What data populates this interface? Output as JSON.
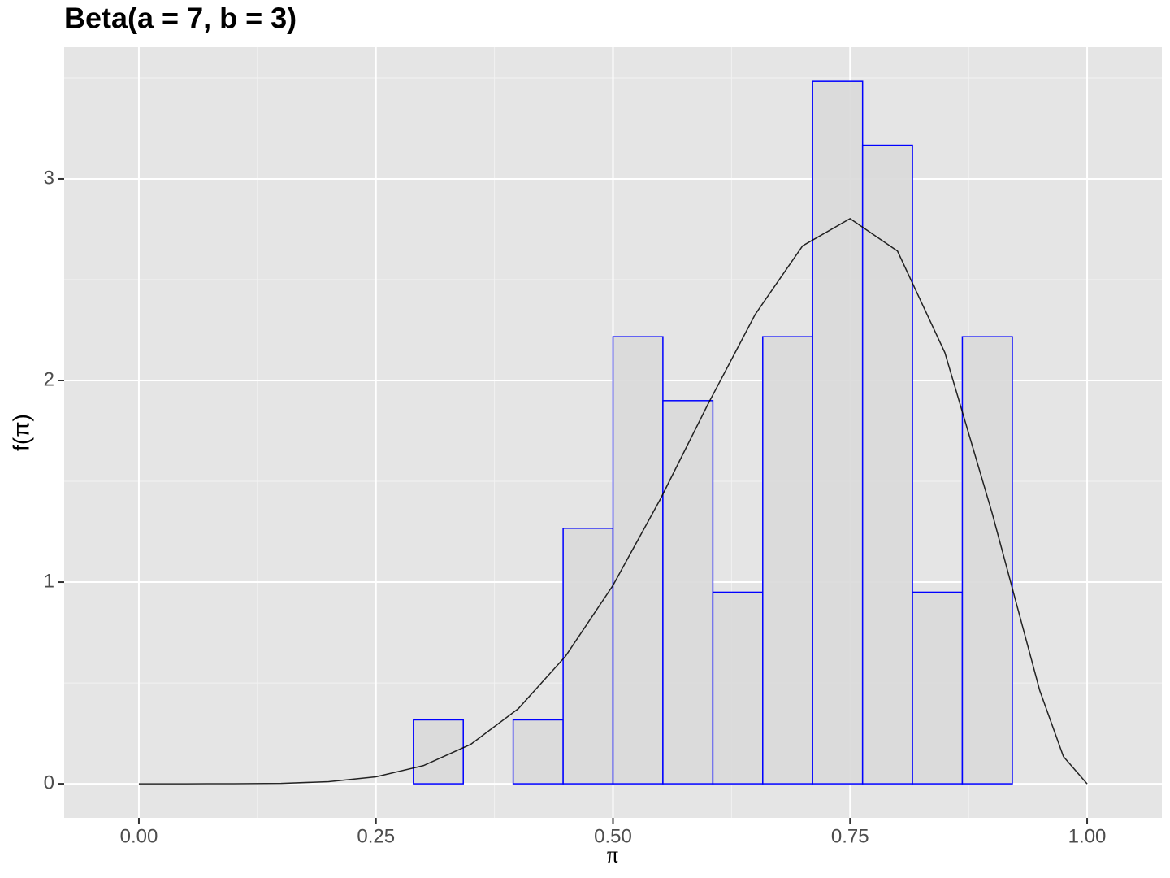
{
  "chart_data": {
    "type": "histogram",
    "title": "Beta(a = 7, b = 3)",
    "x_label": "π",
    "y_label": "f(π)",
    "bins": [
      -0.0263,
      0.0263,
      0.0789,
      0.1316,
      0.1842,
      0.2368,
      0.2895,
      0.3421,
      0.3947,
      0.4474,
      0.5,
      0.5526,
      0.6053,
      0.6579,
      0.7105,
      0.7632,
      0.8158,
      0.8684,
      0.9211,
      0.9737,
      1.0263
    ],
    "values": [
      0,
      0,
      0,
      0,
      0,
      0,
      0.317,
      0,
      0.317,
      1.267,
      2.217,
      1.9,
      0.95,
      2.217,
      3.483,
      3.167,
      0.95,
      2.217,
      0,
      0
    ],
    "color": "#d9d9d9",
    "edge_color": "#0000ff",
    "curve": {
      "color": "#000000",
      "x": [
        0,
        0.05,
        0.1,
        0.15,
        0.2,
        0.25,
        0.3,
        0.35,
        0.4,
        0.45,
        0.5,
        0.55,
        0.6,
        0.65,
        0.7,
        0.75,
        0.8,
        0.85,
        0.9,
        0.95,
        0.975,
        1
      ],
      "values": [
        0,
        3.6e-06,
        0.000204,
        0.00207,
        0.0103,
        0.0346,
        0.09,
        0.1957,
        0.3716,
        0.633,
        0.984,
        1.412,
        1.881,
        2.328,
        2.668,
        2.803,
        2.642,
        2.138,
        1.339,
        0.463,
        0.135,
        0
      ]
    },
    "xlim": [
      -0.0788,
      1.0788
    ],
    "ylim": [
      -0.169,
      3.653
    ],
    "xticks": [
      {
        "value": 0,
        "label": "0.00"
      },
      0.25,
      {
        "value": 0.5,
        "label": "0.50"
      },
      0.75,
      {
        "value": 1,
        "label": "1.00"
      }
    ],
    "yticks": [
      0,
      1,
      2,
      3
    ],
    "grid": true
  }
}
